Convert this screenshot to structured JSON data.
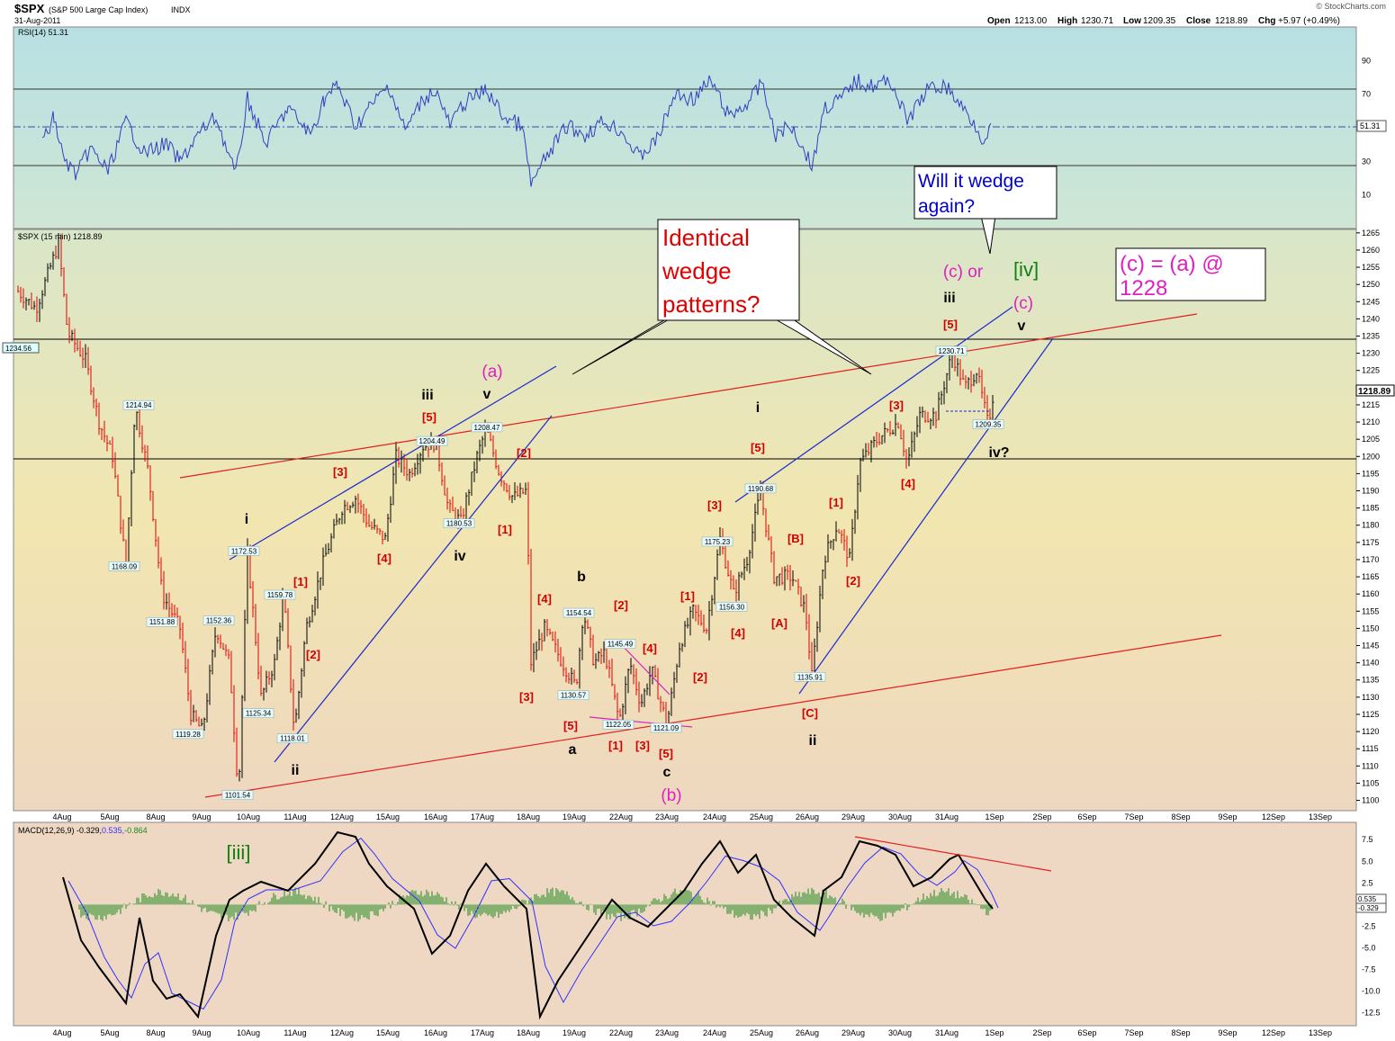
{
  "header": {
    "symbol": "$SPX",
    "name": "(S&P 500 Large Cap Index)",
    "exchange": "INDX",
    "date": "31-Aug-2011",
    "open_label": "Open",
    "open": "1213.00",
    "high_label": "High",
    "high": "1230.71",
    "low_label": "Low",
    "low": "1209.35",
    "close_label": "Close",
    "close": "1218.89",
    "chg_label": "Chg",
    "chg": "+5.97 (+0.49%)",
    "brand": "© StockCharts.com"
  },
  "rsi": {
    "legend": "RSI(14) 51.31",
    "value": "51.31",
    "ticks": [
      90,
      70,
      50,
      30,
      10
    ],
    "levels": [
      70,
      30
    ],
    "fill_color": "#bfe0e0"
  },
  "price": {
    "legend": "$SPX (15 min) 1218.89",
    "last": "1218.89",
    "ticks": [
      1100,
      1105,
      1110,
      1115,
      1120,
      1125,
      1130,
      1135,
      1140,
      1145,
      1150,
      1155,
      1160,
      1165,
      1170,
      1175,
      1180,
      1185,
      1190,
      1195,
      1200,
      1205,
      1210,
      1215,
      1220,
      1225,
      1230,
      1235,
      1240,
      1245,
      1250,
      1255,
      1260,
      1265
    ],
    "ylim": [
      1097,
      1266
    ],
    "bar_up_color": "#000000",
    "bar_down_color": "#e00000",
    "left_marker": "1234.56"
  },
  "macd": {
    "legend": "MACD(12,26,9) -0.329, 0.535, -0.864",
    "legend_parts": [
      "MACD(12,26,9) -0.329,",
      "0.535,",
      "-0.864"
    ],
    "ticks": [
      "7.5",
      "5.0",
      "2.5",
      "0.0",
      "-2.5",
      "-5.0",
      "-7.5",
      "-10.0",
      "-12.5"
    ],
    "tick_values": [
      7.5,
      5,
      2.5,
      0,
      -2.5,
      -5,
      -7.5,
      -10,
      -12.5
    ],
    "ylim": [
      -14,
      9.5
    ],
    "right_labels": [
      "0.535",
      "-0.329",
      "-0.864"
    ],
    "macd_color": "#000000",
    "signal_color": "#3030ff",
    "hist_color": "#1a8a1a"
  },
  "dates": [
    "4Aug",
    "5Aug",
    "8Aug",
    "9Aug",
    "10Aug",
    "11Aug",
    "12Aug",
    "15Aug",
    "16Aug",
    "17Aug",
    "18Aug",
    "19Aug",
    "22Aug",
    "23Aug",
    "24Aug",
    "25Aug",
    "26Aug",
    "29Aug",
    "30Aug",
    "31Aug",
    "1Sep",
    "2Sep",
    "6Sep",
    "7Sep",
    "8Sep",
    "9Sep",
    "12Sep",
    "13Sep"
  ],
  "chart_data": {
    "type": "line",
    "title": "$SPX (S&P 500 Large Cap Index) INDX",
    "xlabel": "",
    "ylabel": "",
    "categories": [
      "4Aug",
      "5Aug",
      "8Aug",
      "9Aug",
      "10Aug",
      "11Aug",
      "12Aug",
      "15Aug",
      "16Aug",
      "17Aug",
      "18Aug",
      "19Aug",
      "22Aug",
      "23Aug",
      "24Aug",
      "25Aug",
      "26Aug",
      "29Aug",
      "30Aug",
      "31Aug"
    ],
    "series": [
      {
        "name": "$SPX (15 min)",
        "x": [
          "4Aug",
          "5Aug",
          "8Aug",
          "9Aug",
          "10Aug",
          "11Aug",
          "12Aug",
          "15Aug",
          "16Aug",
          "17Aug",
          "18Aug",
          "19Aug",
          "22Aug",
          "23Aug",
          "24Aug",
          "25Aug",
          "26Aug",
          "29Aug",
          "30Aug",
          "31Aug"
        ],
        "values": [
          1234,
          1214,
          1152,
          1119,
          1172,
          1159,
          1176,
          1204,
          1200,
          1208,
          1170,
          1140,
          1122,
          1135,
          1175,
          1162,
          1135,
          1195,
          1212,
          1219
        ]
      },
      {
        "name": "RSI(14)",
        "values": [
          45,
          30,
          25,
          40,
          60,
          42,
          70,
          60,
          55,
          65,
          25,
          48,
          40,
          45,
          70,
          45,
          35,
          72,
          62,
          51.31
        ]
      },
      {
        "name": "MACD",
        "values": [
          3,
          -5,
          -10,
          -12,
          -3,
          0,
          8,
          6,
          -2,
          1,
          -14,
          -5,
          -3,
          -1,
          8,
          6,
          -4,
          8,
          5,
          -0.329
        ]
      }
    ],
    "price_labels": [
      {
        "x": "4Aug",
        "y": 1234.56,
        "text": "1234.56"
      },
      {
        "x": "5Aug",
        "y": 1214.94,
        "text": "1214.94"
      },
      {
        "x": "5Aug",
        "y": 1168.09,
        "text": "1168.09"
      },
      {
        "x": "8Aug",
        "y": 1151.88,
        "text": "1151.88"
      },
      {
        "x": "9Aug",
        "y": 1152.36,
        "text": "1152.36"
      },
      {
        "x": "9Aug",
        "y": 1119.28,
        "text": "1119.28"
      },
      {
        "x": "10Aug",
        "y": 1101.54,
        "text": "1101.54"
      },
      {
        "x": "10Aug",
        "y": 1172.53,
        "text": "1172.53"
      },
      {
        "x": "10Aug",
        "y": 1125.34,
        "text": "1125.34"
      },
      {
        "x": "11Aug",
        "y": 1159.78,
        "text": "1159.78"
      },
      {
        "x": "11Aug",
        "y": 1118.01,
        "text": "1118.01"
      },
      {
        "x": "16Aug",
        "y": 1204.49,
        "text": "1204.49"
      },
      {
        "x": "16Aug",
        "y": 1180.53,
        "text": "1180.53"
      },
      {
        "x": "17Aug",
        "y": 1208.47,
        "text": "1208.47"
      },
      {
        "x": "19Aug",
        "y": 1154.54,
        "text": "1154.54"
      },
      {
        "x": "19Aug",
        "y": 1130.57,
        "text": "1130.57"
      },
      {
        "x": "22Aug",
        "y": 1145.49,
        "text": "1145.49"
      },
      {
        "x": "22Aug",
        "y": 1122.05,
        "text": "1122.05"
      },
      {
        "x": "23Aug",
        "y": 1121.09,
        "text": "1121.09"
      },
      {
        "x": "24Aug",
        "y": 1175.23,
        "text": "1175.23"
      },
      {
        "x": "24Aug",
        "y": 1156.3,
        "text": "1156.30"
      },
      {
        "x": "25Aug",
        "y": 1190.68,
        "text": "1190.68"
      },
      {
        "x": "26Aug",
        "y": 1135.91,
        "text": "1135.91"
      },
      {
        "x": "31Aug",
        "y": 1230.71,
        "text": "1230.71"
      },
      {
        "x": "31Aug",
        "y": 1209.35,
        "text": "1209.35"
      }
    ],
    "ylim": [
      1100,
      1265
    ],
    "grid": false,
    "legend": "top-left"
  },
  "annotations": {
    "callout1": [
      "Identical",
      "wedge",
      "patterns?"
    ],
    "callout2": [
      "Will it wedge",
      "again?"
    ],
    "callout3": [
      "(c) = (a) @",
      "1228"
    ],
    "waves_red": [
      "[3]",
      "[4]",
      "[1]",
      "[2]",
      "[5]",
      "[2]",
      "[1]",
      "[4]",
      "[3]",
      "[5]",
      "[1]",
      "[3]",
      "[5]",
      "[2]",
      "[4]",
      "[1]",
      "[2]",
      "[3]",
      "[4]",
      "[5]",
      "[B]",
      "[A]",
      "[C]",
      "[1]",
      "[2]",
      "[3]",
      "[4]",
      "[5]"
    ],
    "waves_blk": [
      "i",
      "ii",
      "iii",
      "iv",
      "v",
      "b",
      "a",
      "c",
      "i",
      "ii",
      "iii",
      "v",
      "iv?"
    ],
    "waves_mag": [
      "(a)",
      "(b)",
      "(c) or",
      "(c)"
    ],
    "waves_grn": [
      "[iv]",
      "[iii]"
    ]
  }
}
